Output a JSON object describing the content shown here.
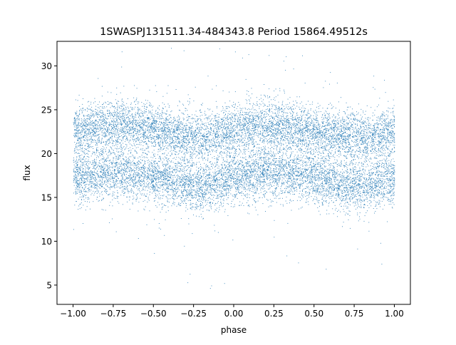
{
  "chart_data": {
    "type": "scatter",
    "title": "1SWASPJ131511.34-484343.8 Period 15864.49512s",
    "xlabel": "phase",
    "ylabel": "flux",
    "xlim": [
      -1.1,
      1.1
    ],
    "ylim": [
      2.8,
      32.8
    ],
    "xticks": [
      -1.0,
      -0.75,
      -0.5,
      -0.25,
      0.0,
      0.25,
      0.5,
      0.75,
      1.0
    ],
    "xtick_labels": [
      "−1.00",
      "−0.75",
      "−0.50",
      "−0.25",
      "0.00",
      "0.25",
      "0.50",
      "0.75",
      "1.00"
    ],
    "yticks": [
      5,
      10,
      15,
      20,
      25,
      30
    ],
    "ytick_labels": [
      "5",
      "10",
      "15",
      "20",
      "25",
      "30"
    ],
    "grid": false,
    "legend": "none",
    "point_color": "#1f77b4",
    "x_range": [
      -1.0,
      1.0
    ],
    "series": [
      {
        "phase": [
          -1.0,
          -0.9,
          -0.8,
          -0.7,
          -0.6,
          -0.5,
          -0.4,
          -0.3,
          -0.2,
          -0.1,
          0.0,
          0.1,
          0.2,
          0.3,
          0.4,
          0.5,
          0.6,
          0.7,
          0.8,
          0.9,
          1.0
        ],
        "flux": [
          17.2,
          17.5,
          17.8,
          17.9,
          17.8,
          17.5,
          17.0,
          16.5,
          16.4,
          16.8,
          17.3,
          17.7,
          17.9,
          17.8,
          17.6,
          17.3,
          16.9,
          16.5,
          16.4,
          16.8,
          17.2
        ]
      },
      {
        "phase": [
          -1.0,
          -0.9,
          -0.8,
          -0.7,
          -0.6,
          -0.5,
          -0.4,
          -0.3,
          -0.2,
          -0.1,
          0.0,
          0.1,
          0.2,
          0.3,
          0.4,
          0.5,
          0.6,
          0.7,
          0.8,
          0.9,
          1.0
        ],
        "flux": [
          22.6,
          22.9,
          23.2,
          23.3,
          23.2,
          22.9,
          22.4,
          21.9,
          21.8,
          22.3,
          22.7,
          23.1,
          23.3,
          23.2,
          22.9,
          22.5,
          22.1,
          21.8,
          21.7,
          22.1,
          22.6
        ]
      }
    ]
  }
}
